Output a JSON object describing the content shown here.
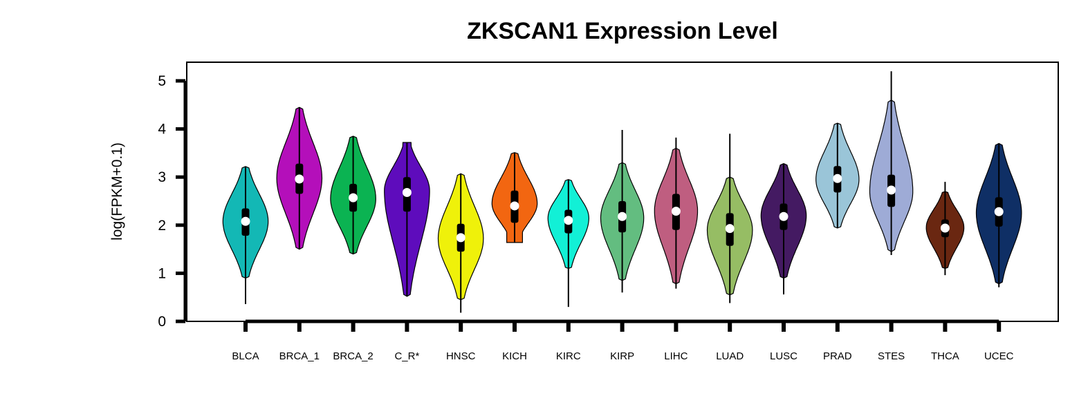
{
  "chart_data": {
    "type": "violin",
    "title": "ZKSCAN1 Expression Level",
    "xlabel": "",
    "ylabel": "log(FPKM+0.1)",
    "ylim": [
      0,
      5.3
    ],
    "yticks": [
      0,
      1,
      2,
      3,
      4,
      5
    ],
    "grid": false,
    "legend": "none",
    "categories": [
      "BLCA",
      "BRCA_1",
      "BRCA_2",
      "C_R*",
      "HNSC",
      "KICH",
      "KIRC",
      "KIRP",
      "LIHC",
      "LUAD",
      "LUSC",
      "PRAD",
      "STES",
      "THCA",
      "UCEC"
    ],
    "series": [
      {
        "category": "BLCA",
        "color": "#13b8b5",
        "median": 2.08,
        "q1": 1.78,
        "q3": 2.35,
        "whisker_low": 0.36,
        "whisker_high": 3.22,
        "violin_min": 0.9,
        "violin_max": 3.22,
        "peak": 2.08,
        "width": 0.42
      },
      {
        "category": "BRCA_1",
        "color": "#b40fba",
        "median": 2.96,
        "q1": 2.65,
        "q3": 3.28,
        "whisker_low": 1.5,
        "whisker_high": 4.45,
        "violin_min": 1.5,
        "violin_max": 4.45,
        "peak": 2.98,
        "width": 0.42
      },
      {
        "category": "BRCA_2",
        "color": "#0bb352",
        "median": 2.57,
        "q1": 2.28,
        "q3": 2.86,
        "whisker_low": 1.4,
        "whisker_high": 3.85,
        "violin_min": 1.4,
        "violin_max": 3.85,
        "peak": 2.55,
        "width": 0.42
      },
      {
        "category": "C_R*",
        "color": "#5e0cbc",
        "median": 2.68,
        "q1": 2.28,
        "q3": 3.0,
        "whisker_low": 0.52,
        "whisker_high": 3.72,
        "violin_min": 0.52,
        "violin_max": 3.72,
        "peak": 2.72,
        "width": 0.42,
        "flat_top": true
      },
      {
        "category": "HNSC",
        "color": "#eff10a",
        "median": 1.74,
        "q1": 1.45,
        "q3": 2.03,
        "whisker_low": 0.18,
        "whisker_high": 3.07,
        "violin_min": 0.45,
        "violin_max": 3.07,
        "peak": 1.72,
        "width": 0.42
      },
      {
        "category": "KICH",
        "color": "#f26611",
        "median": 2.4,
        "q1": 2.05,
        "q3": 2.72,
        "whisker_low": 1.64,
        "whisker_high": 3.51,
        "violin_min": 1.64,
        "violin_max": 3.51,
        "peak": 2.45,
        "width": 0.42,
        "flat_bottom": true
      },
      {
        "category": "KIRC",
        "color": "#12f0d6",
        "median": 2.1,
        "q1": 1.83,
        "q3": 2.32,
        "whisker_low": 0.3,
        "whisker_high": 2.95,
        "violin_min": 1.1,
        "violin_max": 2.95,
        "peak": 2.15,
        "width": 0.38
      },
      {
        "category": "KIRP",
        "color": "#63bd80",
        "median": 2.18,
        "q1": 1.85,
        "q3": 2.5,
        "whisker_low": 0.6,
        "whisker_high": 3.98,
        "violin_min": 0.85,
        "violin_max": 3.3,
        "peak": 2.15,
        "width": 0.4
      },
      {
        "category": "LIHC",
        "color": "#bf5e80",
        "median": 2.29,
        "q1": 1.9,
        "q3": 2.65,
        "whisker_low": 0.68,
        "whisker_high": 3.82,
        "violin_min": 0.78,
        "violin_max": 3.6,
        "peak": 2.3,
        "width": 0.4
      },
      {
        "category": "LUAD",
        "color": "#96bd64",
        "median": 1.93,
        "q1": 1.57,
        "q3": 2.25,
        "whisker_low": 0.38,
        "whisker_high": 3.9,
        "violin_min": 0.55,
        "violin_max": 3.0,
        "peak": 1.9,
        "width": 0.42
      },
      {
        "category": "LUSC",
        "color": "#441a62",
        "median": 2.18,
        "q1": 1.9,
        "q3": 2.45,
        "whisker_low": 0.56,
        "whisker_high": 3.28,
        "violin_min": 0.9,
        "violin_max": 3.28,
        "peak": 2.2,
        "width": 0.42
      },
      {
        "category": "PRAD",
        "color": "#9ac5d8",
        "median": 2.97,
        "q1": 2.68,
        "q3": 3.23,
        "whisker_low": 1.94,
        "whisker_high": 4.12,
        "violin_min": 1.94,
        "violin_max": 4.12,
        "peak": 2.95,
        "width": 0.4
      },
      {
        "category": "STES",
        "color": "#9eabd6",
        "median": 2.73,
        "q1": 2.38,
        "q3": 3.05,
        "whisker_low": 1.38,
        "whisker_high": 5.2,
        "violin_min": 1.45,
        "violin_max": 4.6,
        "peak": 2.7,
        "width": 0.4
      },
      {
        "category": "THCA",
        "color": "#6a2711",
        "median": 1.94,
        "q1": 1.75,
        "q3": 2.12,
        "whisker_low": 0.96,
        "whisker_high": 2.9,
        "violin_min": 1.1,
        "violin_max": 2.7,
        "peak": 1.95,
        "width": 0.35
      },
      {
        "category": "UCEC",
        "color": "#0f2f65",
        "median": 2.28,
        "q1": 1.97,
        "q3": 2.58,
        "whisker_low": 0.71,
        "whisker_high": 3.7,
        "violin_min": 0.78,
        "violin_max": 3.7,
        "peak": 2.25,
        "width": 0.42
      }
    ]
  }
}
